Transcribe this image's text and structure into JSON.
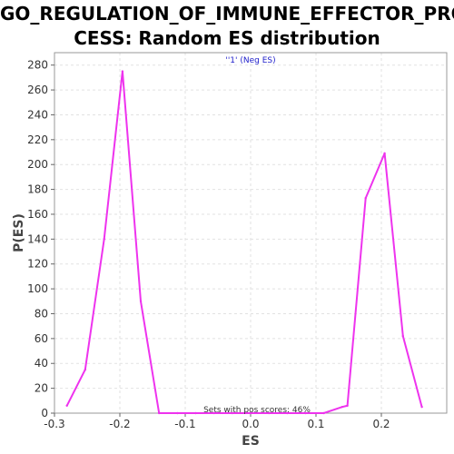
{
  "chart_data": {
    "type": "line",
    "title_line1": "GO_REGULATION_OF_IMMUNE_EFFECTOR_PRO",
    "title_line2": "CESS: Random ES distribution",
    "xlabel": "ES",
    "ylabel": "P(ES)",
    "xlim": [
      -0.3,
      0.3
    ],
    "ylim": [
      0,
      290
    ],
    "xticks": [
      -0.3,
      -0.2,
      -0.1,
      0.0,
      0.1,
      0.2
    ],
    "xtick_labels": [
      "-0.3",
      "-0.2",
      "-0.1",
      "0.0",
      "0.1",
      "0.2"
    ],
    "yticks": [
      0,
      20,
      40,
      60,
      80,
      100,
      120,
      140,
      160,
      180,
      200,
      220,
      240,
      260,
      280
    ],
    "grid": true,
    "legend_position": "top-center",
    "series": [
      {
        "name": "''1' (Neg ES)",
        "color": "#ee33ee",
        "x": [
          -0.281,
          -0.253,
          -0.224,
          -0.196,
          -0.168,
          -0.14,
          -0.112,
          -0.084,
          -0.056,
          -0.028,
          0.0,
          0.028,
          0.056,
          0.084,
          0.112,
          0.14,
          0.148,
          0.176,
          0.205,
          0.233,
          0.262
        ],
        "y": [
          6,
          35,
          140,
          275,
          90,
          0,
          0,
          0,
          0,
          0,
          0,
          0,
          0,
          0,
          0,
          5,
          6,
          173,
          209,
          62,
          5
        ]
      }
    ],
    "annotation": "Sets with pos scores: 46%"
  }
}
